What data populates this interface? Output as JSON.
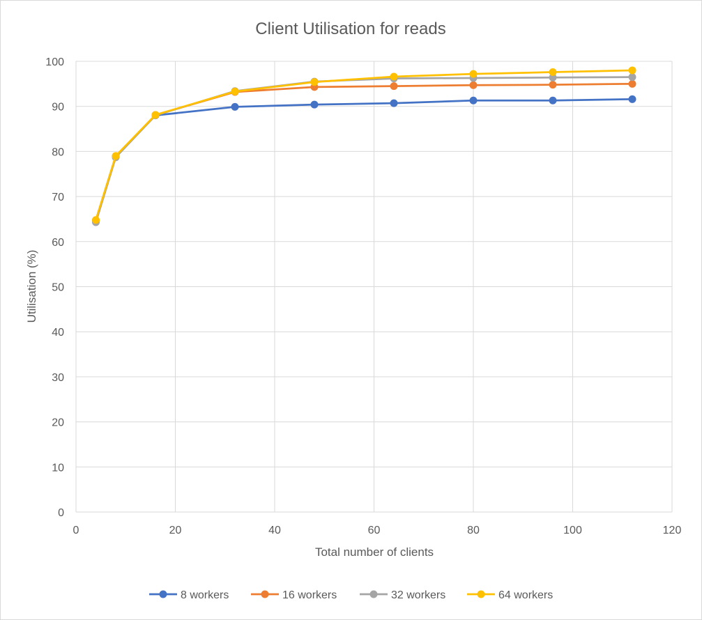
{
  "chart_data": {
    "type": "line",
    "title": "Client Utilisation for reads",
    "xlabel": "Total number of clients",
    "ylabel": "Utilisation (%)",
    "xlim": [
      0,
      120
    ],
    "ylim": [
      0,
      100
    ],
    "xticks": [
      0,
      20,
      40,
      60,
      80,
      100,
      120
    ],
    "yticks": [
      0,
      10,
      20,
      30,
      40,
      50,
      60,
      70,
      80,
      90,
      100
    ],
    "grid": true,
    "legend": "bottom",
    "x": [
      4,
      8,
      16,
      32,
      48,
      64,
      80,
      96,
      112
    ],
    "series": [
      {
        "name": "8 workers",
        "color": "#4472c4",
        "values": [
          64.7,
          78.9,
          88.0,
          89.9,
          90.4,
          90.7,
          91.3,
          91.3,
          91.6
        ]
      },
      {
        "name": "16 workers",
        "color": "#ed7d31",
        "values": [
          64.6,
          78.8,
          88.1,
          93.2,
          94.3,
          94.5,
          94.7,
          94.8,
          95.0
        ]
      },
      {
        "name": "32 workers",
        "color": "#a5a5a5",
        "values": [
          64.3,
          78.7,
          88.0,
          93.4,
          95.5,
          96.2,
          96.3,
          96.4,
          96.5
        ]
      },
      {
        "name": "64 workers",
        "color": "#ffc000",
        "values": [
          64.8,
          79.0,
          88.1,
          93.3,
          95.4,
          96.6,
          97.2,
          97.6,
          98.0
        ]
      }
    ]
  }
}
